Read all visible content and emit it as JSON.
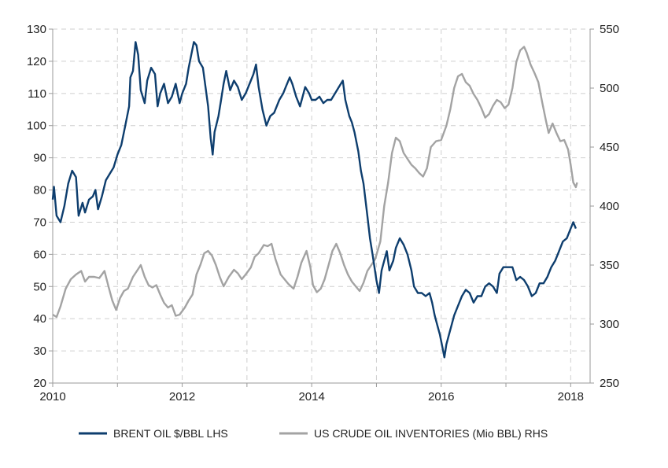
{
  "chart_data": {
    "type": "line",
    "title": "",
    "xlabel": "",
    "ylabel_left": "",
    "ylabel_right": "",
    "xlim": [
      2010,
      2018.3
    ],
    "ylim_left": [
      20,
      130
    ],
    "ylim_right": [
      250,
      550
    ],
    "x_ticks": [
      "2010",
      "2012",
      "2014",
      "2016",
      "2018"
    ],
    "y_ticks_left": [
      "130",
      "120",
      "110",
      "100",
      "90",
      "80",
      "70",
      "60",
      "50",
      "40",
      "30",
      "20"
    ],
    "y_ticks_right": [
      "550",
      "500",
      "450",
      "400",
      "350",
      "300",
      "250"
    ],
    "grid": true,
    "legend_position": "bottom",
    "colors": {
      "brent": "#0e3e6e",
      "inventories": "#a3a3a3"
    },
    "series": [
      {
        "name": "BRENT OIL $/BBL LHS",
        "axis": "left",
        "points": [
          [
            2010.0,
            77
          ],
          [
            2010.02,
            81
          ],
          [
            2010.06,
            72
          ],
          [
            2010.12,
            70
          ],
          [
            2010.18,
            75
          ],
          [
            2010.24,
            82
          ],
          [
            2010.3,
            86
          ],
          [
            2010.36,
            84
          ],
          [
            2010.4,
            72
          ],
          [
            2010.46,
            76
          ],
          [
            2010.5,
            73
          ],
          [
            2010.56,
            77
          ],
          [
            2010.62,
            78
          ],
          [
            2010.66,
            80
          ],
          [
            2010.7,
            74
          ],
          [
            2010.76,
            78
          ],
          [
            2010.82,
            83
          ],
          [
            2010.88,
            85
          ],
          [
            2010.94,
            87
          ],
          [
            2011.0,
            91
          ],
          [
            2011.06,
            94
          ],
          [
            2011.12,
            100
          ],
          [
            2011.18,
            106
          ],
          [
            2011.2,
            115
          ],
          [
            2011.24,
            117
          ],
          [
            2011.28,
            126
          ],
          [
            2011.32,
            122
          ],
          [
            2011.36,
            111
          ],
          [
            2011.42,
            107
          ],
          [
            2011.46,
            114
          ],
          [
            2011.52,
            118
          ],
          [
            2011.58,
            116
          ],
          [
            2011.62,
            106
          ],
          [
            2011.66,
            110
          ],
          [
            2011.72,
            113
          ],
          [
            2011.78,
            107
          ],
          [
            2011.84,
            109
          ],
          [
            2011.9,
            113
          ],
          [
            2011.96,
            107
          ],
          [
            2012.0,
            110
          ],
          [
            2012.06,
            113
          ],
          [
            2012.1,
            118
          ],
          [
            2012.14,
            122
          ],
          [
            2012.18,
            126
          ],
          [
            2012.22,
            125
          ],
          [
            2012.26,
            120
          ],
          [
            2012.32,
            118
          ],
          [
            2012.36,
            112
          ],
          [
            2012.4,
            106
          ],
          [
            2012.44,
            96
          ],
          [
            2012.47,
            91
          ],
          [
            2012.5,
            98
          ],
          [
            2012.56,
            103
          ],
          [
            2012.6,
            108
          ],
          [
            2012.64,
            113
          ],
          [
            2012.68,
            117
          ],
          [
            2012.74,
            111
          ],
          [
            2012.8,
            114
          ],
          [
            2012.86,
            112
          ],
          [
            2012.92,
            108
          ],
          [
            2012.98,
            110
          ],
          [
            2013.04,
            113
          ],
          [
            2013.1,
            116
          ],
          [
            2013.14,
            119
          ],
          [
            2013.18,
            112
          ],
          [
            2013.24,
            105
          ],
          [
            2013.3,
            100
          ],
          [
            2013.36,
            103
          ],
          [
            2013.42,
            104
          ],
          [
            2013.5,
            108
          ],
          [
            2013.56,
            110
          ],
          [
            2013.6,
            112
          ],
          [
            2013.66,
            115
          ],
          [
            2013.7,
            113
          ],
          [
            2013.76,
            109
          ],
          [
            2013.82,
            106
          ],
          [
            2013.86,
            109
          ],
          [
            2013.9,
            112
          ],
          [
            2013.96,
            110
          ],
          [
            2014.0,
            108
          ],
          [
            2014.06,
            108
          ],
          [
            2014.12,
            109
          ],
          [
            2014.18,
            107
          ],
          [
            2014.24,
            108
          ],
          [
            2014.3,
            108
          ],
          [
            2014.36,
            110
          ],
          [
            2014.42,
            112
          ],
          [
            2014.48,
            114
          ],
          [
            2014.52,
            108
          ],
          [
            2014.58,
            103
          ],
          [
            2014.62,
            101
          ],
          [
            2014.66,
            98
          ],
          [
            2014.72,
            92
          ],
          [
            2014.76,
            86
          ],
          [
            2014.8,
            82
          ],
          [
            2014.86,
            72
          ],
          [
            2014.9,
            65
          ],
          [
            2014.94,
            60
          ],
          [
            2015.0,
            52
          ],
          [
            2015.04,
            48
          ],
          [
            2015.08,
            55
          ],
          [
            2015.12,
            58
          ],
          [
            2015.16,
            61
          ],
          [
            2015.2,
            55
          ],
          [
            2015.26,
            58
          ],
          [
            2015.3,
            62
          ],
          [
            2015.36,
            65
          ],
          [
            2015.42,
            63
          ],
          [
            2015.48,
            60
          ],
          [
            2015.54,
            55
          ],
          [
            2015.58,
            50
          ],
          [
            2015.64,
            48
          ],
          [
            2015.7,
            48
          ],
          [
            2015.76,
            47
          ],
          [
            2015.82,
            48
          ],
          [
            2015.86,
            45
          ],
          [
            2015.9,
            41
          ],
          [
            2015.94,
            38
          ],
          [
            2015.98,
            35
          ],
          [
            2016.02,
            31
          ],
          [
            2016.05,
            28
          ],
          [
            2016.08,
            32
          ],
          [
            2016.12,
            35
          ],
          [
            2016.16,
            38
          ],
          [
            2016.2,
            41
          ],
          [
            2016.26,
            44
          ],
          [
            2016.32,
            47
          ],
          [
            2016.38,
            49
          ],
          [
            2016.44,
            48
          ],
          [
            2016.5,
            45
          ],
          [
            2016.56,
            47
          ],
          [
            2016.62,
            47
          ],
          [
            2016.68,
            50
          ],
          [
            2016.74,
            51
          ],
          [
            2016.8,
            50
          ],
          [
            2016.86,
            48
          ],
          [
            2016.9,
            54
          ],
          [
            2016.96,
            56
          ],
          [
            2017.04,
            56
          ],
          [
            2017.1,
            56
          ],
          [
            2017.16,
            52
          ],
          [
            2017.22,
            53
          ],
          [
            2017.28,
            52
          ],
          [
            2017.34,
            50
          ],
          [
            2017.4,
            47
          ],
          [
            2017.46,
            48
          ],
          [
            2017.52,
            51
          ],
          [
            2017.58,
            51
          ],
          [
            2017.64,
            53
          ],
          [
            2017.7,
            56
          ],
          [
            2017.76,
            58
          ],
          [
            2017.82,
            61
          ],
          [
            2017.88,
            64
          ],
          [
            2017.94,
            65
          ],
          [
            2018.0,
            68
          ],
          [
            2018.04,
            70
          ],
          [
            2018.08,
            68
          ]
        ]
      },
      {
        "name": "US CRUDE OIL INVENTORIES (Mio BBL) RHS",
        "axis": "right",
        "points": [
          [
            2010.0,
            308
          ],
          [
            2010.06,
            306
          ],
          [
            2010.12,
            315
          ],
          [
            2010.2,
            330
          ],
          [
            2010.28,
            338
          ],
          [
            2010.36,
            342
          ],
          [
            2010.44,
            345
          ],
          [
            2010.5,
            336
          ],
          [
            2010.56,
            340
          ],
          [
            2010.64,
            340
          ],
          [
            2010.72,
            339
          ],
          [
            2010.8,
            345
          ],
          [
            2010.86,
            332
          ],
          [
            2010.92,
            320
          ],
          [
            2010.98,
            312
          ],
          [
            2011.04,
            322
          ],
          [
            2011.1,
            328
          ],
          [
            2011.16,
            330
          ],
          [
            2011.24,
            340
          ],
          [
            2011.3,
            345
          ],
          [
            2011.36,
            350
          ],
          [
            2011.42,
            340
          ],
          [
            2011.48,
            333
          ],
          [
            2011.54,
            331
          ],
          [
            2011.6,
            333
          ],
          [
            2011.66,
            325
          ],
          [
            2011.72,
            318
          ],
          [
            2011.78,
            314
          ],
          [
            2011.84,
            316
          ],
          [
            2011.9,
            307
          ],
          [
            2011.96,
            308
          ],
          [
            2012.04,
            314
          ],
          [
            2012.1,
            320
          ],
          [
            2012.16,
            325
          ],
          [
            2012.22,
            342
          ],
          [
            2012.28,
            350
          ],
          [
            2012.34,
            360
          ],
          [
            2012.4,
            362
          ],
          [
            2012.46,
            358
          ],
          [
            2012.52,
            350
          ],
          [
            2012.58,
            340
          ],
          [
            2012.64,
            332
          ],
          [
            2012.72,
            340
          ],
          [
            2012.8,
            346
          ],
          [
            2012.86,
            343
          ],
          [
            2012.92,
            338
          ],
          [
            2012.98,
            342
          ],
          [
            2013.06,
            348
          ],
          [
            2013.12,
            357
          ],
          [
            2013.18,
            360
          ],
          [
            2013.26,
            367
          ],
          [
            2013.32,
            366
          ],
          [
            2013.38,
            368
          ],
          [
            2013.44,
            355
          ],
          [
            2013.52,
            342
          ],
          [
            2013.58,
            338
          ],
          [
            2013.64,
            334
          ],
          [
            2013.72,
            330
          ],
          [
            2013.78,
            340
          ],
          [
            2013.84,
            352
          ],
          [
            2013.92,
            362
          ],
          [
            2013.98,
            348
          ],
          [
            2014.02,
            333
          ],
          [
            2014.08,
            327
          ],
          [
            2014.14,
            330
          ],
          [
            2014.2,
            338
          ],
          [
            2014.26,
            350
          ],
          [
            2014.32,
            362
          ],
          [
            2014.38,
            368
          ],
          [
            2014.44,
            360
          ],
          [
            2014.5,
            350
          ],
          [
            2014.56,
            342
          ],
          [
            2014.62,
            336
          ],
          [
            2014.68,
            332
          ],
          [
            2014.74,
            328
          ],
          [
            2014.8,
            335
          ],
          [
            2014.86,
            345
          ],
          [
            2014.92,
            350
          ],
          [
            2014.98,
            355
          ],
          [
            2015.06,
            370
          ],
          [
            2015.12,
            400
          ],
          [
            2015.18,
            420
          ],
          [
            2015.24,
            445
          ],
          [
            2015.3,
            458
          ],
          [
            2015.36,
            455
          ],
          [
            2015.42,
            445
          ],
          [
            2015.48,
            440
          ],
          [
            2015.54,
            435
          ],
          [
            2015.6,
            432
          ],
          [
            2015.66,
            428
          ],
          [
            2015.72,
            425
          ],
          [
            2015.78,
            432
          ],
          [
            2015.84,
            450
          ],
          [
            2015.92,
            455
          ],
          [
            2016.0,
            456
          ],
          [
            2016.08,
            468
          ],
          [
            2016.14,
            482
          ],
          [
            2016.2,
            500
          ],
          [
            2016.26,
            510
          ],
          [
            2016.32,
            512
          ],
          [
            2016.38,
            505
          ],
          [
            2016.44,
            502
          ],
          [
            2016.5,
            495
          ],
          [
            2016.56,
            490
          ],
          [
            2016.62,
            483
          ],
          [
            2016.68,
            475
          ],
          [
            2016.74,
            478
          ],
          [
            2016.8,
            485
          ],
          [
            2016.86,
            490
          ],
          [
            2016.92,
            488
          ],
          [
            2016.98,
            483
          ],
          [
            2017.04,
            486
          ],
          [
            2017.1,
            500
          ],
          [
            2017.16,
            522
          ],
          [
            2017.22,
            532
          ],
          [
            2017.28,
            535
          ],
          [
            2017.32,
            530
          ],
          [
            2017.38,
            520
          ],
          [
            2017.44,
            513
          ],
          [
            2017.5,
            505
          ],
          [
            2017.56,
            488
          ],
          [
            2017.62,
            472
          ],
          [
            2017.66,
            462
          ],
          [
            2017.72,
            470
          ],
          [
            2017.78,
            462
          ],
          [
            2017.84,
            455
          ],
          [
            2017.9,
            456
          ],
          [
            2017.96,
            448
          ],
          [
            2018.0,
            435
          ],
          [
            2018.04,
            420
          ],
          [
            2018.08,
            416
          ],
          [
            2018.1,
            420
          ]
        ]
      }
    ]
  }
}
